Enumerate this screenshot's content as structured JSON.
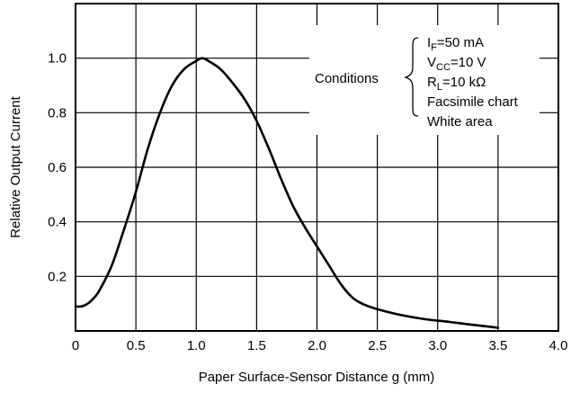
{
  "chart_data": {
    "type": "line",
    "title": "",
    "xlabel": "Paper Surface-Sensor Distance  g (mm)",
    "ylabel": "Relative Output Current",
    "xlim": [
      0,
      4.0
    ],
    "ylim": [
      0,
      1.2
    ],
    "grid": true,
    "x_ticks": [
      {
        "v": 0,
        "label": "0"
      },
      {
        "v": 0.5,
        "label": "0.5"
      },
      {
        "v": 1.0,
        "label": "1.0"
      },
      {
        "v": 1.5,
        "label": "1.5"
      },
      {
        "v": 2.0,
        "label": "2.0"
      },
      {
        "v": 2.5,
        "label": "2.5"
      },
      {
        "v": 3.0,
        "label": "3.0"
      },
      {
        "v": 3.5,
        "label": "3.5"
      },
      {
        "v": 4.0,
        "label": "4.0"
      }
    ],
    "y_ticks": [
      {
        "v": 0.2,
        "label": "0.2"
      },
      {
        "v": 0.4,
        "label": "0.4"
      },
      {
        "v": 0.6,
        "label": "0.6"
      },
      {
        "v": 0.8,
        "label": "0.8"
      },
      {
        "v": 1.0,
        "label": "1.0"
      }
    ],
    "series": [
      {
        "x": [
          0.0,
          0.05,
          0.1,
          0.15,
          0.2,
          0.3,
          0.4,
          0.5,
          0.6,
          0.7,
          0.8,
          0.9,
          1.0,
          1.05,
          1.1,
          1.2,
          1.3,
          1.4,
          1.5,
          1.6,
          1.7,
          1.8,
          1.9,
          2.0,
          2.1,
          2.2,
          2.3,
          2.4,
          2.5,
          2.7,
          2.9,
          3.1,
          3.3,
          3.5
        ],
        "y": [
          0.09,
          0.09,
          0.1,
          0.12,
          0.15,
          0.24,
          0.37,
          0.51,
          0.67,
          0.8,
          0.9,
          0.96,
          0.99,
          1.0,
          0.99,
          0.96,
          0.91,
          0.85,
          0.77,
          0.67,
          0.56,
          0.46,
          0.38,
          0.31,
          0.24,
          0.17,
          0.12,
          0.095,
          0.08,
          0.058,
          0.043,
          0.033,
          0.022,
          0.012
        ]
      }
    ],
    "annotations": {
      "conditions_label": "Conditions",
      "conditions": {
        "if_main": "I",
        "if_sub": "F",
        "if_val": "=50 mA",
        "vcc_main": "V",
        "vcc_sub": "CC",
        "vcc_val": "=10 V",
        "rl_main": "R",
        "rl_sub": "L",
        "rl_val": "=10 kΩ",
        "line4": "Facsimile chart",
        "line5": "White area"
      }
    }
  }
}
